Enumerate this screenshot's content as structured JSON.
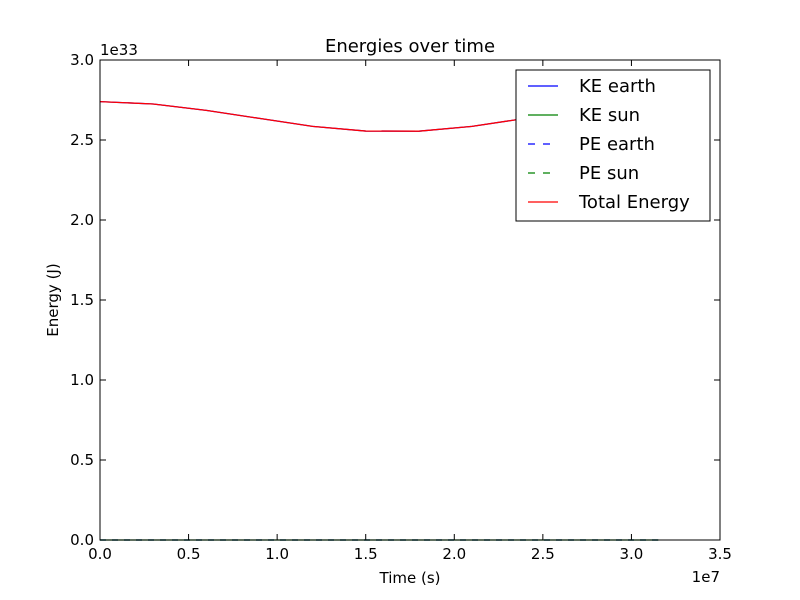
{
  "chart_data": {
    "type": "line",
    "title": "Energies over time",
    "xlabel": "Time (s)",
    "ylabel": "Energy (J)",
    "x_offset_text": "1e7",
    "y_offset_text": "1e33",
    "xlim": [
      0,
      35000000
    ],
    "ylim": [
      0,
      3e+33
    ],
    "x_ticks": [
      0,
      5000000,
      10000000,
      15000000,
      20000000,
      25000000,
      30000000,
      35000000
    ],
    "x_tick_labels": [
      "0.0",
      "0.5",
      "1.0",
      "1.5",
      "2.0",
      "2.5",
      "3.0",
      "3.5"
    ],
    "y_ticks": [
      0,
      5e+32,
      1e+33,
      1.5e+33,
      2e+33,
      2.5e+33,
      3e+33
    ],
    "y_tick_labels": [
      "0.0",
      "0.5",
      "1.0",
      "1.5",
      "2.0",
      "2.5",
      "3.0"
    ],
    "grid": false,
    "legend_position": "top-right",
    "series": [
      {
        "name": "KE earth",
        "color": "#0000ff",
        "dash": "solid",
        "x": [
          0,
          3000000,
          6000000,
          9000000,
          12000000,
          15000000,
          18000000,
          21000000,
          24000000,
          27000000,
          30000000,
          31536000
        ],
        "y": [
          2.74e+33,
          2.725e+33,
          2.685e+33,
          2.635e+33,
          2.585e+33,
          2.556e+33,
          2.555e+33,
          2.585e+33,
          2.635e+33,
          2.685e+33,
          2.725e+33,
          2.74e+33
        ]
      },
      {
        "name": "KE sun",
        "color": "#008000",
        "dash": "solid",
        "x": [
          0,
          31536000
        ],
        "y": [
          0,
          0
        ]
      },
      {
        "name": "PE earth",
        "color": "#0000ff",
        "dash": "dashed",
        "x": [
          0,
          31536000
        ],
        "y": [
          0,
          0
        ]
      },
      {
        "name": "PE sun",
        "color": "#008000",
        "dash": "dashed",
        "x": [
          0,
          31536000
        ],
        "y": [
          0,
          0
        ]
      },
      {
        "name": "Total Energy",
        "color": "#ff0000",
        "dash": "solid",
        "x": [
          0,
          3000000,
          6000000,
          9000000,
          12000000,
          15000000,
          18000000,
          21000000,
          24000000,
          27000000,
          30000000,
          31536000
        ],
        "y": [
          2.74e+33,
          2.725e+33,
          2.685e+33,
          2.635e+33,
          2.585e+33,
          2.556e+33,
          2.555e+33,
          2.585e+33,
          2.635e+33,
          2.685e+33,
          2.725e+33,
          2.74e+33
        ]
      }
    ]
  }
}
